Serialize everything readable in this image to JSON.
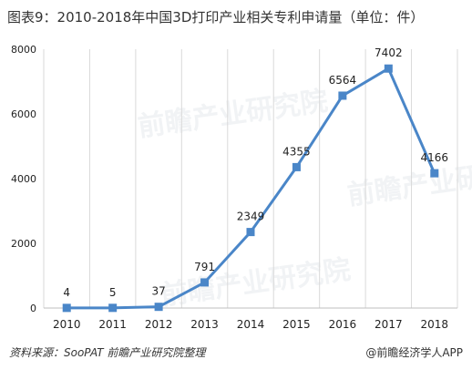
{
  "title": "图表9：2010-2018年中国3D打印产业相关专利申请量（单位：件）",
  "footer": {
    "source": "资料来源：SooPAT 前瞻产业研究院整理",
    "brand": "@前瞻经济学人APP"
  },
  "watermark": "前瞻产业研究院",
  "colors": {
    "line": "#4a86c8",
    "marker": "#4a86c8",
    "grid": "#d9d9d9"
  },
  "chart_data": {
    "type": "line",
    "title": "图表9：2010-2018年中国3D打印产业相关专利申请量（单位：件）",
    "xlabel": "",
    "ylabel": "",
    "categories": [
      "2010",
      "2011",
      "2012",
      "2013",
      "2014",
      "2015",
      "2016",
      "2017",
      "2018"
    ],
    "series": [
      {
        "values": [
          4,
          5,
          37,
          791,
          2349,
          4355,
          6564,
          7402,
          4166
        ],
        "labels": [
          "4",
          "5",
          "37",
          "791",
          "2349",
          "4355",
          "6564",
          "7402",
          "4166"
        ]
      }
    ],
    "ylim": [
      0,
      8000
    ],
    "yticks": [
      0,
      2000,
      4000,
      6000,
      8000
    ],
    "grid": "vertical",
    "legend": "none"
  }
}
